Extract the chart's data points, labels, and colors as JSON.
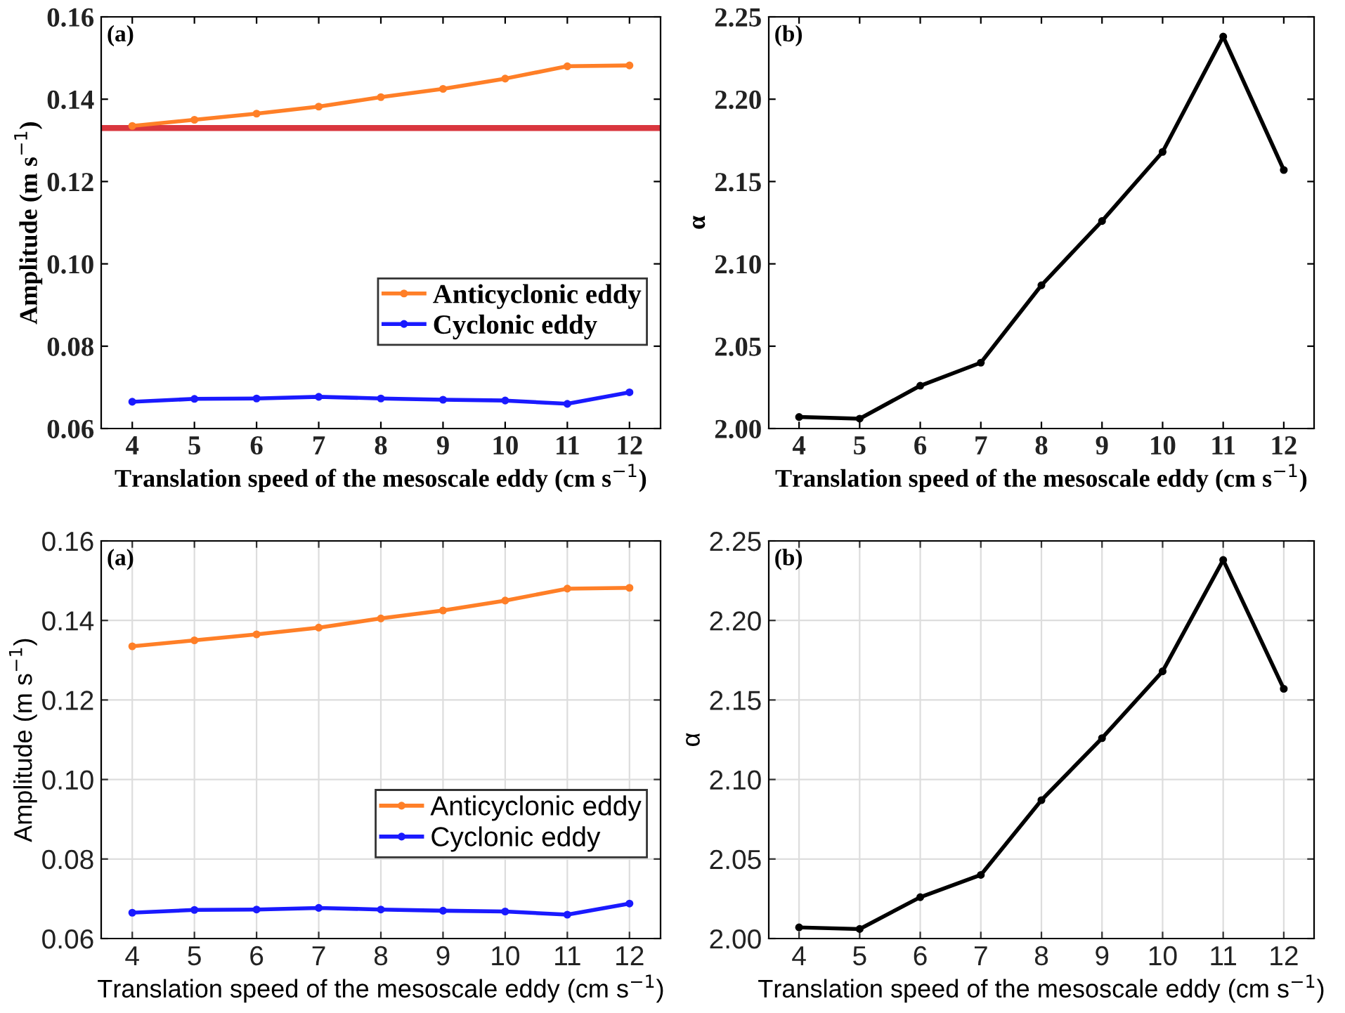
{
  "chart_data": [
    {
      "type": "line",
      "xlabel": "Translation speed of the mesoscale eddy (cm s$^{−1}$)",
      "ylabel": "Amplitude (m s$^{−1}$)",
      "annotations": [
        "(a)"
      ],
      "x": [
        4,
        5,
        6,
        7,
        8,
        9,
        10,
        11,
        12
      ],
      "series": [
        {
          "name": "Anticyclonic eddy",
          "color": "#ff7f27",
          "values": [
            0.1335,
            0.135,
            0.1365,
            0.1382,
            0.1405,
            0.1425,
            0.145,
            0.148,
            0.1482
          ]
        },
        {
          "name": "Cyclonic eddy",
          "color": "#1a1aff",
          "values": [
            0.0665,
            0.0672,
            0.0673,
            0.0677,
            0.0673,
            0.067,
            0.0668,
            0.066,
            0.0688
          ]
        }
      ],
      "xlim": [
        3.5,
        12.5
      ],
      "xticks": [
        4,
        5,
        6,
        7,
        8,
        9,
        10,
        11,
        12
      ],
      "ylim": [
        0.06,
        0.16
      ],
      "yticks": [
        {
          "value": 0.06,
          "label": "0.06"
        },
        {
          "value": 0.08,
          "label": "0.08"
        },
        {
          "value": 0.1,
          "label": "0.10"
        },
        {
          "value": 0.12,
          "label": "0.12"
        },
        {
          "value": 0.14,
          "label": "0.14"
        },
        {
          "value": 0.16,
          "label": "0.16"
        }
      ],
      "grid": false,
      "legend": "bottom right",
      "marker": "circle",
      "line_style": "solid",
      "ref_lines": [
        {
          "axis": "y",
          "value": 0.133,
          "color": "#d9363e"
        }
      ]
    },
    {
      "type": "line",
      "xlabel": "Translation speed of the mesoscale eddy (cm s$^{−1}$)",
      "ylabel": "α",
      "annotations": [
        "(b)"
      ],
      "x": [
        4,
        5,
        6,
        7,
        8,
        9,
        10,
        11,
        12
      ],
      "series": [
        {
          "color": "#000000",
          "values": [
            2.007,
            2.006,
            2.026,
            2.04,
            2.087,
            2.126,
            2.168,
            2.238,
            2.157
          ]
        }
      ],
      "xlim": [
        3.5,
        12.5
      ],
      "xticks": [
        4,
        5,
        6,
        7,
        8,
        9,
        10,
        11,
        12
      ],
      "ylim": [
        2.0,
        2.25
      ],
      "yticks": [
        {
          "value": 2.0,
          "label": "2.00"
        },
        {
          "value": 2.05,
          "label": "2.05"
        },
        {
          "value": 2.1,
          "label": "2.10"
        },
        {
          "value": 2.15,
          "label": "2.15"
        },
        {
          "value": 2.2,
          "label": "2.20"
        },
        {
          "value": 2.25,
          "label": "2.25"
        }
      ],
      "grid": false,
      "marker": "circle",
      "line_style": "solid"
    },
    {
      "type": "line",
      "xlabel": "Translation speed of the mesoscale eddy (cm s$^{−1}$)",
      "ylabel": "Amplitude (m s$^{−1}$)",
      "annotations": [
        "(a)"
      ],
      "x": [
        4,
        5,
        6,
        7,
        8,
        9,
        10,
        11,
        12
      ],
      "series": [
        {
          "name": "Anticyclonic eddy",
          "color": "#ff7f27",
          "values": [
            0.1335,
            0.135,
            0.1365,
            0.1382,
            0.1405,
            0.1425,
            0.145,
            0.148,
            0.1482
          ]
        },
        {
          "name": "Cyclonic eddy",
          "color": "#1a1aff",
          "values": [
            0.0665,
            0.0672,
            0.0673,
            0.0677,
            0.0673,
            0.067,
            0.0668,
            0.066,
            0.0688
          ]
        }
      ],
      "xlim": [
        3.5,
        12.5
      ],
      "xticks": [
        4,
        5,
        6,
        7,
        8,
        9,
        10,
        11,
        12
      ],
      "ylim": [
        0.06,
        0.16
      ],
      "yticks": [
        {
          "value": 0.06,
          "label": "0.06"
        },
        {
          "value": 0.08,
          "label": "0.08"
        },
        {
          "value": 0.1,
          "label": "0.10"
        },
        {
          "value": 0.12,
          "label": "0.12"
        },
        {
          "value": 0.14,
          "label": "0.14"
        },
        {
          "value": 0.16,
          "label": "0.16"
        }
      ],
      "grid": true,
      "legend": "bottom right",
      "marker": "circle",
      "line_style": "solid"
    },
    {
      "type": "line",
      "xlabel": "Translation speed of the mesoscale eddy (cm s$^{−1}$)",
      "ylabel": "α",
      "annotations": [
        "(b)"
      ],
      "x": [
        4,
        5,
        6,
        7,
        8,
        9,
        10,
        11,
        12
      ],
      "series": [
        {
          "color": "#000000",
          "values": [
            2.007,
            2.006,
            2.026,
            2.04,
            2.087,
            2.126,
            2.168,
            2.238,
            2.157
          ]
        }
      ],
      "xlim": [
        3.5,
        12.5
      ],
      "xticks": [
        4,
        5,
        6,
        7,
        8,
        9,
        10,
        11,
        12
      ],
      "ylim": [
        2.0,
        2.25
      ],
      "yticks": [
        {
          "value": 2.0,
          "label": "2.00"
        },
        {
          "value": 2.05,
          "label": "2.05"
        },
        {
          "value": 2.1,
          "label": "2.10"
        },
        {
          "value": 2.15,
          "label": "2.15"
        },
        {
          "value": 2.2,
          "label": "2.20"
        },
        {
          "value": 2.25,
          "label": "2.25"
        }
      ],
      "grid": true,
      "marker": "circle",
      "line_style": "solid"
    }
  ]
}
